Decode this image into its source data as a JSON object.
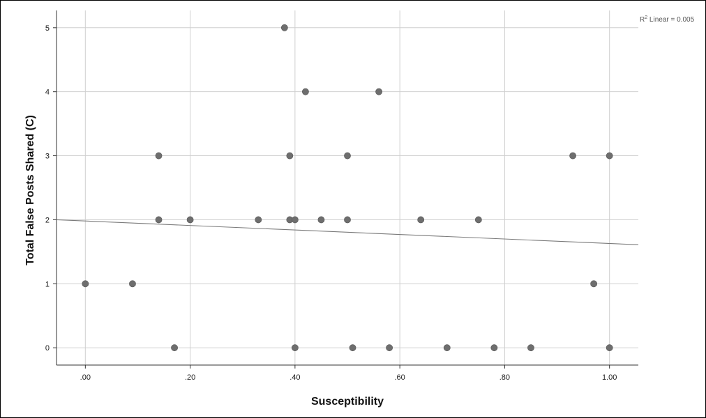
{
  "chart_data": {
    "type": "scatter",
    "title": "",
    "xlabel": "Susceptibility",
    "ylabel": "Total False Posts Shared (C)",
    "xlim": [
      -0.055,
      1.055
    ],
    "ylim": [
      -0.27,
      5.27
    ],
    "x_ticks": [
      0,
      0.2,
      0.4,
      0.6,
      0.8,
      1.0
    ],
    "x_tick_labels": [
      ".00",
      ".20",
      ".40",
      ".60",
      ".80",
      "1.00"
    ],
    "y_ticks": [
      0,
      1,
      2,
      3,
      4,
      5
    ],
    "y_tick_labels": [
      "0",
      "1",
      "2",
      "3",
      "4",
      "5"
    ],
    "grid": true,
    "point_color": "#6e6e6e",
    "fit_line_color": "#7a7a7a",
    "grid_color": "#cfcfcf",
    "points": [
      {
        "x": 0.0,
        "y": 1
      },
      {
        "x": 0.09,
        "y": 1
      },
      {
        "x": 0.14,
        "y": 3
      },
      {
        "x": 0.14,
        "y": 2
      },
      {
        "x": 0.17,
        "y": 0
      },
      {
        "x": 0.2,
        "y": 2
      },
      {
        "x": 0.33,
        "y": 2
      },
      {
        "x": 0.38,
        "y": 5
      },
      {
        "x": 0.39,
        "y": 3
      },
      {
        "x": 0.39,
        "y": 2
      },
      {
        "x": 0.4,
        "y": 2
      },
      {
        "x": 0.4,
        "y": 0
      },
      {
        "x": 0.42,
        "y": 4
      },
      {
        "x": 0.45,
        "y": 2
      },
      {
        "x": 0.5,
        "y": 3
      },
      {
        "x": 0.5,
        "y": 2
      },
      {
        "x": 0.51,
        "y": 0
      },
      {
        "x": 0.56,
        "y": 4
      },
      {
        "x": 0.58,
        "y": 0
      },
      {
        "x": 0.64,
        "y": 2
      },
      {
        "x": 0.69,
        "y": 0
      },
      {
        "x": 0.75,
        "y": 2
      },
      {
        "x": 0.78,
        "y": 0
      },
      {
        "x": 0.85,
        "y": 0
      },
      {
        "x": 0.93,
        "y": 3
      },
      {
        "x": 0.97,
        "y": 1
      },
      {
        "x": 1.0,
        "y": 3
      },
      {
        "x": 1.0,
        "y": 0
      }
    ],
    "fit_line": {
      "type": "linear",
      "start": {
        "x": -0.055,
        "y": 2.0
      },
      "end": {
        "x": 1.055,
        "y": 1.61
      }
    },
    "annotation": {
      "prefix": "R",
      "superscript": "2",
      "suffix": " Linear = 0.005"
    }
  }
}
